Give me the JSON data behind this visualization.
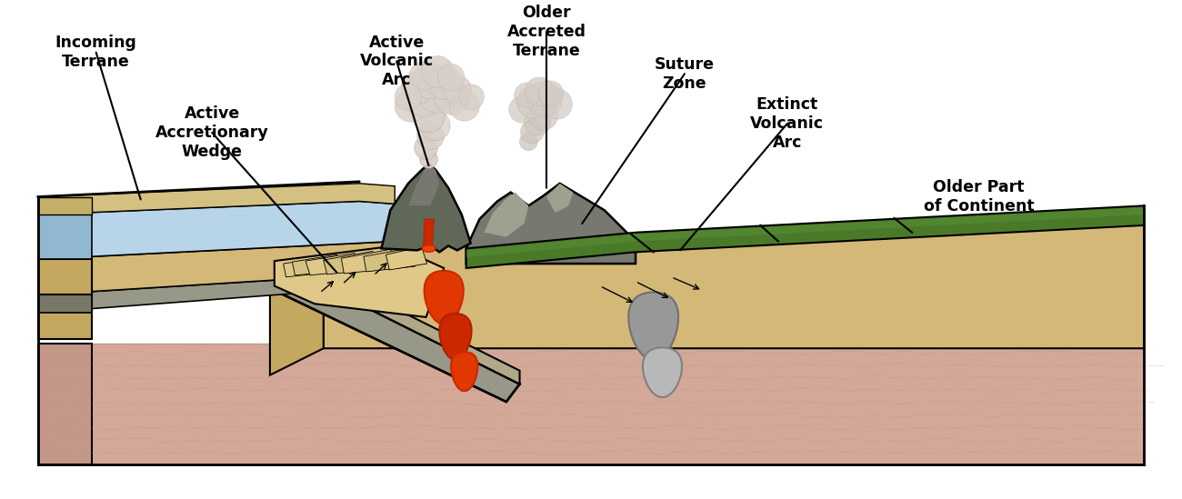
{
  "labels": {
    "incoming_terrane": "Incoming\nTerrane",
    "active_accretionary_wedge": "Active\nAccretionary\nWedge",
    "active_volcanic_arc": "Active\nVolcanic\nArc",
    "older_accreted_terrane": "Older\nAccreted\nTerrane",
    "suture_zone": "Suture\nZone",
    "extinct_volcanic_arc": "Extinct\nVolcanic\nArc",
    "older_part_of_continent": "Older Part\nof Continent"
  },
  "colors": {
    "white": "#ffffff",
    "pink_mantle": "#d4a898",
    "pink_mantle_side": "#c49888",
    "tan_crust": "#d4b878",
    "tan_crust_dark": "#c4a860",
    "tan_crust_light": "#e0c888",
    "ocean_blue": "#b8d4e8",
    "ocean_blue_dark": "#90b8d0",
    "ocean_blue_side": "#7aacc0",
    "sand_tan": "#d4c080",
    "gray_plate": "#989888",
    "gray_plate_dark": "#787868",
    "dark_gray": "#606858",
    "green_veg": "#4a7a28",
    "green_veg_dark": "#385818",
    "green_veg_light": "#5a9038",
    "magma_red": "#cc2800",
    "magma_orange": "#e03800",
    "gray_magma": "#989898",
    "gray_magma_light": "#b8b8b8",
    "rock_dark": "#585848",
    "cloud_light": "#e8e8e8",
    "cloud_mid": "#d0d0d0",
    "cloud_dark": "#b8b8b8",
    "black": "#000000"
  }
}
